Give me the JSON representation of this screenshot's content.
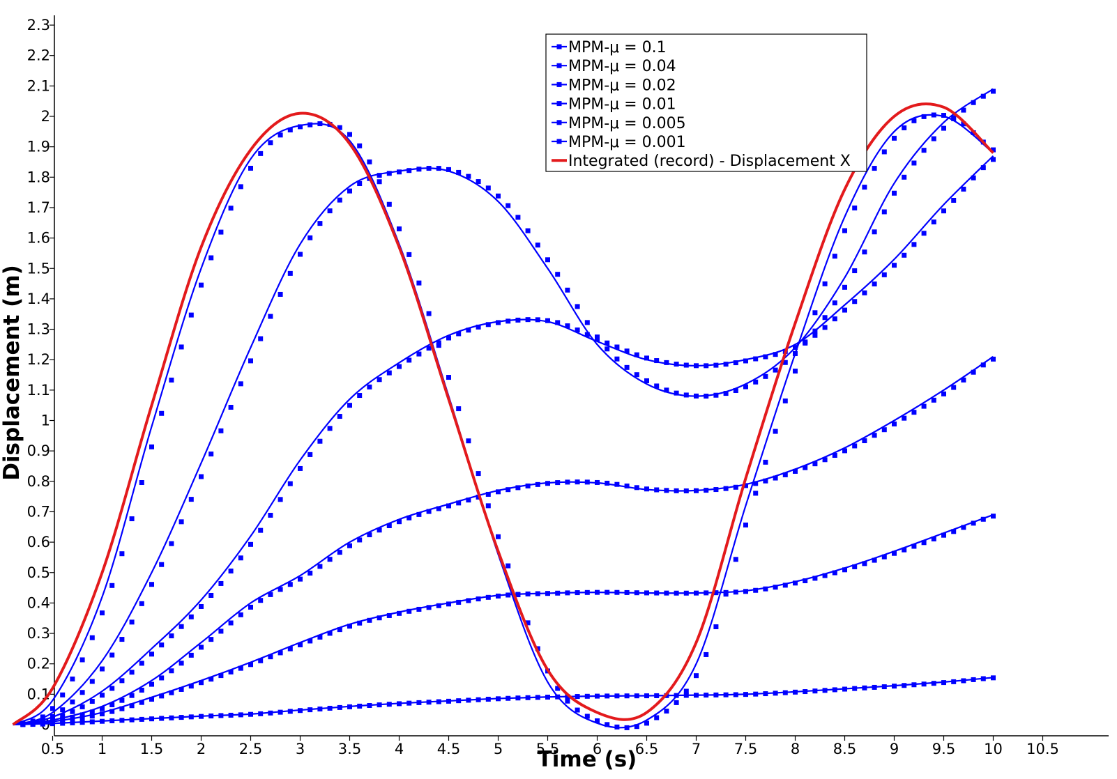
{
  "chart_data": {
    "type": "line",
    "xlabel": "Time (s)",
    "ylabel": "Displacement (m)",
    "xlim": [
      0.05,
      10.8
    ],
    "ylim": [
      -0.04,
      2.36
    ],
    "xticks": [
      "0.5",
      "1",
      "1.5",
      "2",
      "2.5",
      "3",
      "3.5",
      "4",
      "4.5",
      "5",
      "5.5",
      "6",
      "6.5",
      "7",
      "7.5",
      "8",
      "8.5",
      "9",
      "9.5",
      "10",
      "10.5"
    ],
    "yticks": [
      "0",
      "0.1",
      "0.2",
      "0.3",
      "0.4",
      "0.5",
      "0.6",
      "0.7",
      "0.8",
      "0.9",
      "1",
      "1.1",
      "1.2",
      "1.3",
      "1.4",
      "1.5",
      "1.6",
      "1.7",
      "1.8",
      "1.9",
      "2",
      "2.1",
      "2.2",
      "2.3"
    ],
    "legend_position": "top-center",
    "grid": false,
    "x": [
      0.1,
      0.5,
      1,
      1.5,
      2,
      2.5,
      3,
      3.5,
      4,
      4.5,
      5,
      5.5,
      6,
      6.5,
      7,
      7.5,
      8,
      8.5,
      9,
      9.5,
      10
    ],
    "series": [
      {
        "name": "MPM-μ = 0.1",
        "color": "#0000ff",
        "marker": "square",
        "values": [
          0,
          0.004,
          0.012,
          0.02,
          0.028,
          0.035,
          0.048,
          0.06,
          0.07,
          0.078,
          0.086,
          0.091,
          0.094,
          0.095,
          0.097,
          0.1,
          0.108,
          0.118,
          0.128,
          0.14,
          0.155
        ]
      },
      {
        "name": "MPM-μ = 0.04",
        "color": "#0000ff",
        "marker": "square",
        "values": [
          0,
          0.01,
          0.04,
          0.09,
          0.145,
          0.205,
          0.27,
          0.33,
          0.37,
          0.4,
          0.425,
          0.432,
          0.435,
          0.433,
          0.433,
          0.44,
          0.47,
          0.515,
          0.57,
          0.63,
          0.69
        ]
      },
      {
        "name": "MPM-μ = 0.02",
        "color": "#0000ff",
        "marker": "square",
        "values": [
          0,
          0.015,
          0.06,
          0.145,
          0.27,
          0.4,
          0.49,
          0.6,
          0.675,
          0.725,
          0.77,
          0.795,
          0.795,
          0.773,
          0.77,
          0.79,
          0.84,
          0.91,
          1.0,
          1.1,
          1.21
        ]
      },
      {
        "name": "MPM-μ = 0.01",
        "color": "#0000ff",
        "marker": "square",
        "values": [
          0,
          0.025,
          0.11,
          0.25,
          0.41,
          0.62,
          0.87,
          1.07,
          1.19,
          1.28,
          1.325,
          1.325,
          1.26,
          1.2,
          1.18,
          1.2,
          1.25,
          1.38,
          1.53,
          1.71,
          1.87
        ]
      },
      {
        "name": "MPM-μ = 0.005",
        "color": "#0000ff",
        "marker": "square",
        "values": [
          0,
          0.04,
          0.21,
          0.5,
          0.86,
          1.24,
          1.58,
          1.77,
          1.82,
          1.82,
          1.72,
          1.5,
          1.25,
          1.12,
          1.08,
          1.12,
          1.24,
          1.47,
          1.78,
          1.98,
          2.09
        ]
      },
      {
        "name": "MPM-μ = 0.001",
        "color": "#0000ff",
        "marker": "square",
        "values": [
          0,
          0.08,
          0.42,
          0.98,
          1.5,
          1.86,
          1.97,
          1.92,
          1.58,
          1.08,
          0.56,
          0.14,
          0.005,
          0.015,
          0.2,
          0.72,
          1.22,
          1.67,
          1.95,
          2.0,
          1.88
        ]
      },
      {
        "name": "Integrated (record) - Displacement X",
        "color": "#e31a1c",
        "marker": "none",
        "values": [
          0,
          0.12,
          0.5,
          1.05,
          1.57,
          1.89,
          2.01,
          1.91,
          1.57,
          1.07,
          0.57,
          0.18,
          0.04,
          0.04,
          0.27,
          0.81,
          1.32,
          1.76,
          2.0,
          2.03,
          1.88
        ]
      }
    ]
  }
}
